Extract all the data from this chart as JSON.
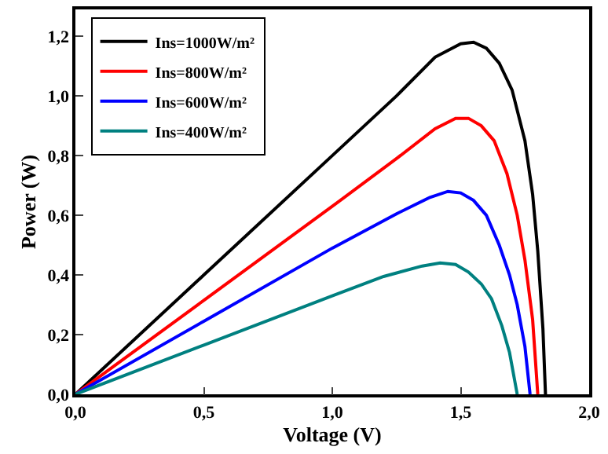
{
  "chart_data": {
    "type": "line",
    "xlabel": "Voltage (V)",
    "ylabel": "Power (W)",
    "xlim": [
      0,
      2.0
    ],
    "ylim": [
      0,
      1.29
    ],
    "xticks": [
      {
        "value": 0,
        "label": "0,0"
      },
      {
        "value": 0.5,
        "label": "0,5"
      },
      {
        "value": 1.0,
        "label": "1,0"
      },
      {
        "value": 1.5,
        "label": "1,5"
      },
      {
        "value": 2.0,
        "label": "2,0"
      }
    ],
    "yticks": [
      {
        "value": 0,
        "label": "0,0"
      },
      {
        "value": 0.2,
        "label": "0,2"
      },
      {
        "value": 0.4,
        "label": "0,4"
      },
      {
        "value": 0.6,
        "label": "0,6"
      },
      {
        "value": 0.8,
        "label": "0,8"
      },
      {
        "value": 1.0,
        "label": "1,0"
      },
      {
        "value": 1.2,
        "label": "1,2"
      }
    ],
    "legend": "top left",
    "marker": "none",
    "line_style": "solid",
    "series": [
      {
        "name": "Ins=1000W/m²",
        "color": "#000000",
        "x": [
          0,
          0.5,
          1.0,
          1.25,
          1.4,
          1.5,
          1.55,
          1.6,
          1.65,
          1.7,
          1.75,
          1.78,
          1.8,
          1.82,
          1.83
        ],
        "values": [
          0,
          0.4,
          0.8,
          1.0,
          1.13,
          1.175,
          1.18,
          1.16,
          1.11,
          1.02,
          0.85,
          0.67,
          0.48,
          0.22,
          0
        ]
      },
      {
        "name": "Ins=800W/m²",
        "color": "#ff0000",
        "x": [
          0,
          0.5,
          1.0,
          1.25,
          1.4,
          1.48,
          1.53,
          1.58,
          1.63,
          1.68,
          1.72,
          1.75,
          1.78,
          1.8
        ],
        "values": [
          0,
          0.315,
          0.63,
          0.79,
          0.89,
          0.925,
          0.925,
          0.9,
          0.85,
          0.74,
          0.6,
          0.45,
          0.25,
          0
        ]
      },
      {
        "name": "Ins=600W/m²",
        "color": "#0000ff",
        "x": [
          0,
          0.5,
          1.0,
          1.25,
          1.38,
          1.45,
          1.5,
          1.55,
          1.6,
          1.65,
          1.69,
          1.72,
          1.75,
          1.77
        ],
        "values": [
          0,
          0.245,
          0.49,
          0.605,
          0.66,
          0.68,
          0.675,
          0.65,
          0.6,
          0.5,
          0.4,
          0.3,
          0.16,
          0
        ]
      },
      {
        "name": "Ins=400W/m²",
        "color": "#008080",
        "x": [
          0,
          0.5,
          1.0,
          1.2,
          1.35,
          1.42,
          1.48,
          1.53,
          1.58,
          1.62,
          1.66,
          1.69,
          1.72
        ],
        "values": [
          0,
          0.165,
          0.33,
          0.395,
          0.43,
          0.44,
          0.435,
          0.41,
          0.37,
          0.32,
          0.23,
          0.14,
          0
        ]
      }
    ]
  }
}
